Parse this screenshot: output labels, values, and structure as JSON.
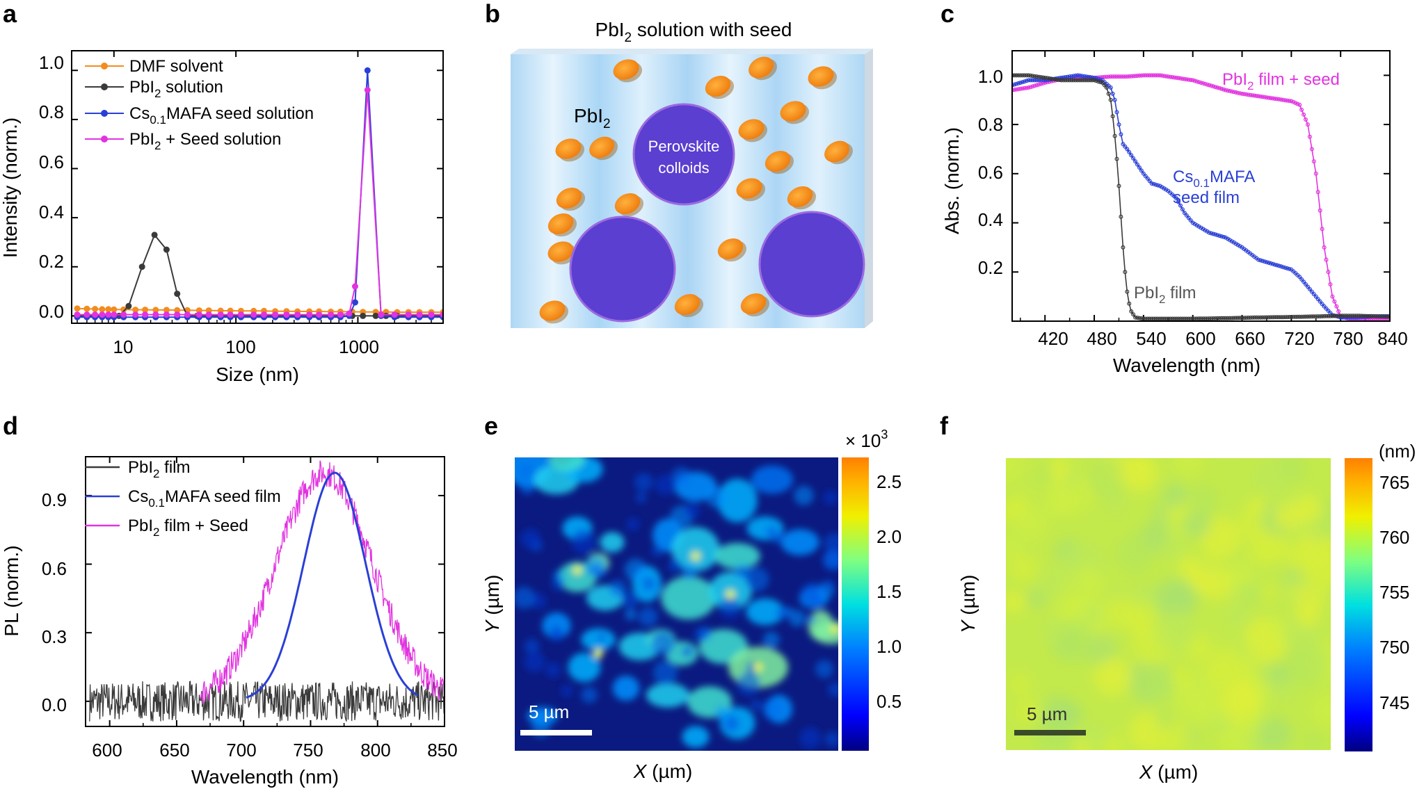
{
  "colors": {
    "orange": "#f28c1f",
    "black": "#3a3a3a",
    "blue": "#2a3fd6",
    "magenta": "#e233e0",
    "colloid": "#5a3fd0",
    "colloid_edge": "#9b6ae0",
    "particle": "#f39019"
  },
  "panels": {
    "a": {
      "letter": "a",
      "ylabel": "Intensity (norm.)",
      "xlabel": "Size (nm)",
      "xticks": [
        "10",
        "100",
        "1000"
      ],
      "yticks": [
        "0.0",
        "0.2",
        "0.4",
        "0.6",
        "0.8",
        "1.0"
      ],
      "legend": [
        {
          "pre": "DMF solvent",
          "sub": "",
          "post": ""
        },
        {
          "pre": "PbI",
          "sub": "2",
          "post": " solution"
        },
        {
          "pre": "Cs",
          "sub": "0.1",
          "post": "MAFA seed solution"
        },
        {
          "pre": "PbI",
          "sub": "2",
          "post": " + Seed solution"
        }
      ]
    },
    "b": {
      "letter": "b",
      "title_pre": "PbI",
      "title_sub": "2",
      "title_post": " solution with seed",
      "pbi_pre": "PbI",
      "pbi_sub": "2",
      "colloid_line1": "Perovskite",
      "colloid_line2": "colloids"
    },
    "c": {
      "letter": "c",
      "ylabel": "Abs. (norm.)",
      "xlabel": "Wavelength (nm)",
      "xticks": [
        "420",
        "480",
        "540",
        "600",
        "660",
        "720",
        "780",
        "840"
      ],
      "yticks": [
        "0.2",
        "0.4",
        "0.6",
        "0.8",
        "1.0"
      ],
      "label_seed_pre": "PbI",
      "label_seed_sub": "2",
      "label_seed_post": " film + seed",
      "label_cs_pre": "Cs",
      "label_cs_sub": "0.1",
      "label_cs_post": "MAFA",
      "label_cs_line2": "seed film",
      "label_pb_pre": "PbI",
      "label_pb_sub": "2",
      "label_pb_post": " film"
    },
    "d": {
      "letter": "d",
      "ylabel": "PL (norm.)",
      "xlabel": "Wavelength (nm)",
      "xticks": [
        "600",
        "650",
        "700",
        "750",
        "800",
        "850"
      ],
      "yticks": [
        "0.0",
        "0.3",
        "0.6",
        "0.9"
      ],
      "legend": [
        {
          "pre": "PbI",
          "sub": "2",
          "post": " film"
        },
        {
          "pre": "Cs",
          "sub": "0.1",
          "post": "MAFA seed film"
        },
        {
          "pre": "PbI",
          "sub": "2",
          "post": " film + Seed"
        }
      ]
    },
    "e": {
      "letter": "e",
      "xlabel_var": "X",
      "xlabel_unit": " (µm)",
      "ylabel_var": "Y",
      "ylabel_unit": " (µm)",
      "colorbar_title_pre": "× 10",
      "colorbar_title_sup": "3",
      "colorbar_ticks": [
        "2.5",
        "2.0",
        "1.5",
        "1.0",
        "0.5"
      ],
      "scalebar": "5 µm"
    },
    "f": {
      "letter": "f",
      "xlabel_var": "X",
      "xlabel_unit": " (µm)",
      "ylabel_var": "Y",
      "ylabel_unit": " (µm)",
      "colorbar_title": "(nm)",
      "colorbar_ticks": [
        "765",
        "760",
        "755",
        "750",
        "745"
      ],
      "scalebar": "5 µm"
    }
  },
  "chart_data": [
    {
      "id": "a",
      "type": "line",
      "xscale": "log",
      "xlim": [
        4.5,
        5000
      ],
      "ylim": [
        -0.03,
        1.08
      ],
      "series": [
        {
          "name": "DMF solvent",
          "color": "orange",
          "x": [
            5,
            6,
            7,
            8,
            9,
            10,
            12,
            15,
            18,
            22,
            27,
            33,
            40,
            50,
            60,
            75,
            90,
            110,
            140,
            170,
            210,
            260,
            320,
            400,
            480,
            600,
            720,
            900,
            1100,
            1400,
            1700,
            2100,
            2600,
            3200,
            4000,
            5000
          ],
          "y": [
            0.03,
            0.029,
            0.028,
            0.027,
            0.027,
            0.026,
            0.026,
            0.025,
            0.025,
            0.024,
            0.024,
            0.023,
            0.023,
            0.022,
            0.022,
            0.021,
            0.021,
            0.02,
            0.02,
            0.02,
            0.019,
            0.019,
            0.018,
            0.018,
            0.018,
            0.017,
            0.017,
            0.017,
            0.016,
            0.016,
            0.016,
            0.015,
            0.015,
            0.015,
            0.015,
            0.015
          ]
        },
        {
          "name": "PbI2 solution",
          "color": "black",
          "x": [
            5,
            6,
            7,
            8,
            9,
            10,
            11,
            13.2,
            17,
            21.5,
            27,
            33,
            40,
            48,
            60,
            75,
            90,
            110,
            140,
            170,
            210,
            260,
            320,
            400,
            480,
            600,
            720,
            900,
            1100,
            1400,
            1700,
            2100,
            2600,
            3200,
            4000,
            5000
          ],
          "y": [
            0,
            0,
            0,
            0,
            0,
            0,
            0,
            0.04,
            0.2,
            0.33,
            0.27,
            0.09,
            0,
            0,
            0,
            0,
            0,
            0,
            0,
            0,
            0,
            0,
            0,
            0,
            0,
            0,
            0,
            0,
            0,
            0,
            0,
            0,
            0,
            0,
            0,
            0
          ]
        },
        {
          "name": "Cs0.1MAFA seed solution",
          "color": "blue",
          "x": [
            5,
            6,
            7,
            8,
            9,
            10,
            12,
            15,
            18,
            22,
            27,
            33,
            40,
            50,
            60,
            75,
            90,
            110,
            140,
            170,
            210,
            260,
            320,
            400,
            480,
            600,
            720,
            850,
            950,
            1200,
            1550,
            2000,
            2600,
            3200,
            4000,
            5000
          ],
          "y": [
            -0.005,
            -0.005,
            -0.005,
            -0.005,
            -0.005,
            -0.005,
            -0.005,
            -0.005,
            -0.005,
            -0.005,
            -0.005,
            -0.005,
            -0.005,
            -0.005,
            -0.005,
            -0.005,
            -0.005,
            -0.005,
            -0.005,
            -0.005,
            -0.005,
            -0.005,
            -0.005,
            -0.005,
            -0.005,
            -0.005,
            -0.005,
            0.0,
            0.055,
            1.0,
            0.0,
            -0.005,
            -0.005,
            -0.005,
            -0.005,
            -0.005
          ]
        },
        {
          "name": "PbI2 + Seed solution",
          "color": "magenta",
          "x": [
            5,
            6,
            7,
            8,
            9,
            10,
            12,
            15,
            18,
            22,
            27,
            33,
            40,
            50,
            60,
            75,
            90,
            110,
            140,
            170,
            210,
            260,
            320,
            400,
            480,
            600,
            720,
            850,
            950,
            1200,
            1550,
            2000,
            2600,
            3200,
            4000,
            5000
          ],
          "y": [
            0.005,
            0.005,
            0.005,
            0.005,
            0.005,
            0.005,
            0.005,
            0.005,
            0.005,
            0.005,
            0.005,
            0.005,
            0.005,
            0.005,
            0.005,
            0.005,
            0.005,
            0.005,
            0.005,
            0.005,
            0.005,
            0.005,
            0.005,
            0.005,
            0.005,
            0.005,
            0.005,
            0.01,
            0.12,
            0.92,
            0.005,
            0.005,
            0.005,
            0.005,
            0.005,
            0.005
          ]
        }
      ]
    },
    {
      "id": "c",
      "type": "line",
      "xlim": [
        380,
        840
      ],
      "ylim": [
        0.0,
        1.1
      ],
      "series": [
        {
          "name": "PbI2 film + seed",
          "color": "magenta",
          "x": [
            380,
            400,
            420,
            440,
            460,
            480,
            500,
            520,
            540,
            560,
            580,
            600,
            620,
            640,
            660,
            680,
            700,
            720,
            730,
            740,
            750,
            760,
            770,
            780,
            790,
            800,
            820,
            840
          ],
          "y": [
            0.94,
            0.95,
            0.97,
            0.985,
            0.99,
            0.99,
            0.995,
            0.995,
            1.0,
            1.0,
            0.99,
            0.98,
            0.96,
            0.94,
            0.925,
            0.915,
            0.905,
            0.895,
            0.88,
            0.8,
            0.6,
            0.3,
            0.1,
            0.02,
            0.01,
            0.01,
            0.01,
            0.01
          ]
        },
        {
          "name": "Cs0.1MAFA seed film",
          "color": "blue",
          "x": [
            380,
            400,
            420,
            440,
            460,
            480,
            490,
            500,
            505,
            510,
            515,
            520,
            530,
            540,
            550,
            560,
            570,
            580,
            590,
            600,
            610,
            620,
            640,
            660,
            680,
            700,
            710,
            720,
            730,
            740,
            750,
            760,
            770,
            780,
            800,
            820,
            840
          ],
          "y": [
            0.96,
            0.98,
            0.98,
            0.99,
            1.0,
            0.99,
            0.98,
            0.95,
            0.9,
            0.8,
            0.72,
            0.7,
            0.65,
            0.6,
            0.56,
            0.55,
            0.53,
            0.5,
            0.44,
            0.4,
            0.38,
            0.36,
            0.34,
            0.3,
            0.25,
            0.23,
            0.22,
            0.21,
            0.18,
            0.14,
            0.1,
            0.06,
            0.025,
            0.015,
            0.015,
            0.02,
            0.02
          ]
        },
        {
          "name": "PbI2 film",
          "color": "black",
          "x": [
            380,
            400,
            420,
            440,
            460,
            480,
            490,
            495,
            500,
            503,
            506,
            509,
            512,
            515,
            518,
            521,
            525,
            530,
            540,
            560,
            600,
            640,
            680,
            720,
            760,
            780,
            800,
            820,
            840
          ],
          "y": [
            1.0,
            1.0,
            0.99,
            0.98,
            0.98,
            0.98,
            0.97,
            0.95,
            0.9,
            0.82,
            0.72,
            0.6,
            0.45,
            0.3,
            0.18,
            0.09,
            0.04,
            0.015,
            0.01,
            0.01,
            0.01,
            0.012,
            0.015,
            0.017,
            0.02,
            0.022,
            0.022,
            0.02,
            0.018
          ]
        }
      ]
    },
    {
      "id": "d",
      "type": "line",
      "xlim": [
        582,
        850
      ],
      "ylim": [
        -0.11,
        1.07
      ],
      "series": [
        {
          "name": "PbI2 film",
          "color": "black",
          "x_range": [
            585,
            850
          ],
          "center": null,
          "width": null,
          "noise": 0.055
        },
        {
          "name": "Cs0.1MAFA seed film",
          "color": "blue",
          "x_range": [
            702,
            830
          ],
          "center": 768,
          "width": 23,
          "noise": 0.0
        },
        {
          "name": "PbI2 film + Seed",
          "color": "magenta",
          "x_range": [
            668,
            850
          ],
          "center": 760,
          "width": 36,
          "noise": 0.06
        }
      ]
    },
    {
      "id": "e",
      "type": "heatmap",
      "xlim": [
        0,
        19
      ],
      "ylim": [
        0,
        19
      ],
      "value_range": [
        0.0,
        2.7
      ],
      "scale": "× 10^3",
      "colorbar_ticks": [
        2.5,
        2.0,
        1.5,
        1.0,
        0.5
      ]
    },
    {
      "id": "f",
      "type": "heatmap",
      "xlim": [
        0,
        19
      ],
      "ylim": [
        0,
        19
      ],
      "value_range": [
        741.5,
        767.5
      ],
      "unit": "nm",
      "colorbar_ticks": [
        765,
        760,
        755,
        750,
        745
      ]
    }
  ]
}
